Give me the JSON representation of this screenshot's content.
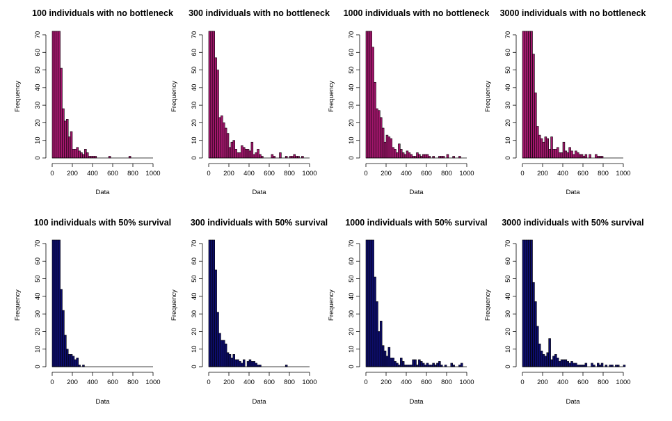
{
  "chart_data": [
    {
      "type": "bar",
      "title": "100 individuals with no bottleneck",
      "xlabel": "Data",
      "ylabel": "Frequency",
      "xlim": [
        0,
        1000
      ],
      "ylim": [
        0,
        70
      ],
      "xticks": [
        "0",
        "200",
        "400",
        "600",
        "800",
        "1000"
      ],
      "yticks": [
        "0",
        "10",
        "20",
        "30",
        "40",
        "50",
        "60",
        "70"
      ],
      "bin_width": 20,
      "bin_start": 0,
      "values": [
        73,
        73,
        73,
        73,
        51,
        28,
        21,
        22,
        12,
        15,
        5,
        5,
        6,
        4,
        3,
        2,
        5,
        3,
        1,
        1,
        1,
        1,
        0,
        0,
        0,
        0,
        0,
        0,
        1,
        0,
        0,
        0,
        0,
        0,
        0,
        0,
        0,
        0,
        1
      ],
      "fill": "#a3176d",
      "border": "#000000"
    },
    {
      "type": "bar",
      "title": "300 individuals with no bottleneck",
      "xlabel": "Data",
      "ylabel": "Frequency",
      "xlim": [
        0,
        1000
      ],
      "ylim": [
        0,
        70
      ],
      "xticks": [
        "0",
        "200",
        "400",
        "600",
        "800",
        "1000"
      ],
      "yticks": [
        "0",
        "10",
        "20",
        "30",
        "40",
        "50",
        "60",
        "70"
      ],
      "bin_width": 20,
      "bin_start": 0,
      "values": [
        73,
        73,
        73,
        57,
        50,
        23,
        24,
        20,
        17,
        14,
        6,
        9,
        10,
        5,
        3,
        3,
        7,
        6,
        5,
        5,
        4,
        9,
        2,
        3,
        5,
        2,
        1,
        0,
        0,
        0,
        0,
        2,
        1,
        0,
        0,
        3,
        0,
        0,
        1,
        0,
        1,
        1,
        2,
        1,
        1,
        0,
        1
      ],
      "fill": "#a3176d",
      "border": "#000000"
    },
    {
      "type": "bar",
      "title": "1000 individuals with no bottleneck",
      "xlabel": "Data",
      "ylabel": "Frequency",
      "xlim": [
        0,
        1000
      ],
      "ylim": [
        0,
        70
      ],
      "xticks": [
        "0",
        "200",
        "400",
        "600",
        "800",
        "1000"
      ],
      "yticks": [
        "0",
        "10",
        "20",
        "30",
        "40",
        "50",
        "60",
        "70"
      ],
      "bin_width": 20,
      "bin_start": 0,
      "values": [
        73,
        73,
        73,
        63,
        43,
        28,
        27,
        23,
        17,
        9,
        13,
        12,
        11,
        6,
        5,
        3,
        8,
        5,
        3,
        2,
        4,
        3,
        2,
        1,
        1,
        3,
        2,
        1,
        2,
        2,
        2,
        1,
        0,
        1,
        0,
        0,
        1,
        1,
        1,
        0,
        2,
        0,
        0,
        1,
        0,
        0,
        1
      ],
      "fill": "#a3176d",
      "border": "#000000"
    },
    {
      "type": "bar",
      "title": "3000 individuals with no bottleneck",
      "xlabel": "Data",
      "ylabel": "Frequency",
      "xlim": [
        0,
        1000
      ],
      "ylim": [
        0,
        70
      ],
      "xticks": [
        "0",
        "200",
        "400",
        "600",
        "800",
        "1000"
      ],
      "yticks": [
        "0",
        "10",
        "20",
        "30",
        "40",
        "50",
        "60",
        "70"
      ],
      "bin_width": 20,
      "bin_start": 0,
      "values": [
        73,
        73,
        73,
        73,
        73,
        59,
        37,
        18,
        13,
        11,
        9,
        12,
        11,
        5,
        12,
        5,
        5,
        6,
        3,
        3,
        9,
        4,
        3,
        6,
        4,
        2,
        4,
        3,
        2,
        2,
        1,
        2,
        0,
        2,
        0,
        0,
        2,
        1,
        1,
        1
      ],
      "fill": "#a3176d",
      "border": "#000000"
    },
    {
      "type": "bar",
      "title": "100 individuals with 50% survival",
      "xlabel": "Data",
      "ylabel": "Frequency",
      "xlim": [
        0,
        1000
      ],
      "ylim": [
        0,
        70
      ],
      "xticks": [
        "0",
        "200",
        "400",
        "600",
        "800",
        "1000"
      ],
      "yticks": [
        "0",
        "10",
        "20",
        "30",
        "40",
        "50",
        "60",
        "70"
      ],
      "bin_width": 20,
      "bin_start": 0,
      "values": [
        73,
        73,
        73,
        73,
        44,
        32,
        18,
        10,
        7,
        7,
        6,
        4,
        5,
        1,
        0,
        1
      ],
      "fill": "#0d0d6b",
      "border": "#000000"
    },
    {
      "type": "bar",
      "title": "300 individuals with 50% survival",
      "xlabel": "Data",
      "ylabel": "Frequency",
      "xlim": [
        0,
        1000
      ],
      "ylim": [
        0,
        70
      ],
      "xticks": [
        "0",
        "200",
        "400",
        "600",
        "800",
        "1000"
      ],
      "yticks": [
        "0",
        "10",
        "20",
        "30",
        "40",
        "50",
        "60",
        "70"
      ],
      "bin_width": 20,
      "bin_start": 0,
      "values": [
        73,
        73,
        73,
        55,
        31,
        19,
        15,
        15,
        13,
        8,
        7,
        5,
        7,
        4,
        4,
        3,
        2,
        4,
        0,
        3,
        4,
        3,
        3,
        2,
        1,
        1,
        0,
        0,
        0,
        0,
        0,
        0,
        0,
        0,
        0,
        0,
        0,
        0,
        1
      ],
      "fill": "#0d0d6b",
      "border": "#000000"
    },
    {
      "type": "bar",
      "title": "1000 individuals with 50% survival",
      "xlabel": "Data",
      "ylabel": "Frequency",
      "xlim": [
        0,
        1000
      ],
      "ylim": [
        0,
        70
      ],
      "xticks": [
        "0",
        "200",
        "400",
        "600",
        "800",
        "1000"
      ],
      "yticks": [
        "0",
        "10",
        "20",
        "30",
        "40",
        "50",
        "60",
        "70"
      ],
      "bin_width": 20,
      "bin_start": 0,
      "values": [
        73,
        73,
        73,
        73,
        51,
        37,
        20,
        26,
        12,
        9,
        6,
        11,
        5,
        5,
        3,
        2,
        1,
        5,
        3,
        1,
        1,
        1,
        1,
        4,
        4,
        1,
        4,
        3,
        2,
        1,
        2,
        1,
        1,
        2,
        1,
        2,
        3,
        1,
        0,
        1,
        0,
        0,
        2,
        1,
        0,
        0,
        1,
        2
      ],
      "fill": "#0d0d6b",
      "border": "#000000"
    },
    {
      "type": "bar",
      "title": "3000 individuals with 50% survival",
      "xlabel": "Data",
      "ylabel": "Frequency",
      "xlim": [
        0,
        1000
      ],
      "ylim": [
        0,
        70
      ],
      "xticks": [
        "0",
        "200",
        "400",
        "600",
        "800",
        "1000"
      ],
      "yticks": [
        "0",
        "10",
        "20",
        "30",
        "40",
        "50",
        "60",
        "70"
      ],
      "bin_width": 20,
      "bin_start": 0,
      "values": [
        73,
        73,
        73,
        73,
        73,
        48,
        37,
        23,
        13,
        9,
        7,
        6,
        8,
        16,
        4,
        6,
        7,
        5,
        3,
        4,
        4,
        4,
        3,
        2,
        3,
        2,
        2,
        1,
        1,
        1,
        1,
        2,
        0,
        0,
        2,
        1,
        0,
        2,
        1,
        2,
        0,
        1,
        0,
        1,
        1,
        0,
        1,
        1,
        0,
        0,
        1
      ],
      "fill": "#0d0d6b",
      "border": "#000000"
    }
  ]
}
